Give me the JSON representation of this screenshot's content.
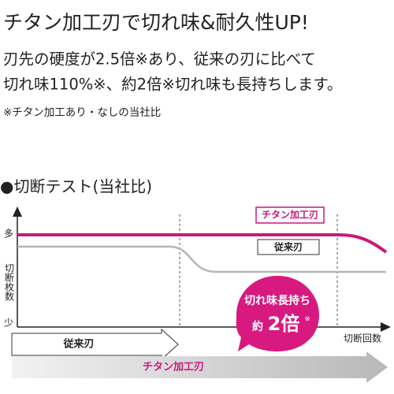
{
  "header": {
    "title": "チタン加工刃で切れ味&耐久性UP!"
  },
  "body": {
    "lines": [
      "刃先の硬度が2.5倍※あり、従来の刃に比べて",
      "切れ味110%※、約2倍※切れ味も長持ちします。"
    ],
    "note": "※チタン加工あり・なしの当社比"
  },
  "figure": {
    "title": "●切断テスト(当社比)",
    "y_axis": {
      "top": "多",
      "label": "切断枚数",
      "bottom": "少"
    },
    "x_axis": {
      "label": "切断回数"
    },
    "legend": {
      "titanium": "チタン加工刃",
      "conventional": "従来刃"
    },
    "callout": {
      "line1": "切れ味長持ち",
      "prefix": "約",
      "emphasis": "2倍",
      "mark": "※"
    },
    "arrows": {
      "conventional": "従来刃",
      "titanium": "チタン加工刃"
    }
  }
}
